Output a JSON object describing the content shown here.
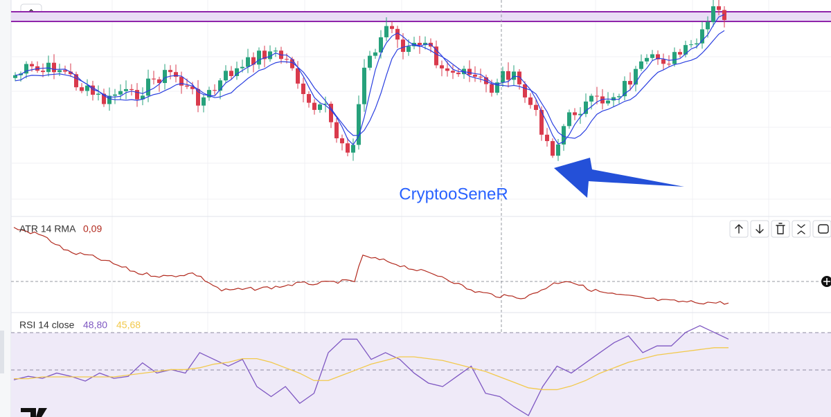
{
  "watermark": "CryptooSeneR",
  "atr": {
    "label": "ATR 14 RMA",
    "value": "0,09"
  },
  "chart_data": {
    "type": "line",
    "title": "RSI 14 close",
    "ylim": [
      24,
      79
    ],
    "series": [
      {
        "label": "48,80",
        "color": "#7e57c2",
        "values": [
          44.4,
          46.3,
          45.2,
          48.1,
          46.3,
          43.7,
          48.1,
          45.2,
          46.3,
          53.7,
          48.1,
          50,
          48.1,
          59.3,
          55.6,
          51.9,
          55.6,
          40.7,
          35.2,
          40.7,
          31.5,
          37,
          59.3,
          66.7,
          66.7,
          55.6,
          59.3,
          55.6,
          48.1,
          42.6,
          40.7,
          46.3,
          51.9,
          37,
          35.2,
          29.6,
          24.8,
          40.7,
          51.9,
          48.1,
          53.7,
          59.3,
          64.8,
          68.5,
          59.3,
          63,
          63,
          70.4,
          74.1,
          70.4,
          66.7
        ]
      },
      {
        "label": "45,68",
        "color": "#f2c94c",
        "values": [
          45,
          45,
          46,
          46,
          46,
          46,
          46,
          46,
          47,
          48,
          49,
          50,
          50,
          51,
          53,
          54,
          56,
          56,
          54,
          51,
          48,
          44,
          44,
          47,
          50,
          53,
          55,
          57,
          57,
          56,
          55,
          53,
          51,
          49,
          46,
          43,
          40,
          39,
          39,
          41,
          44,
          48,
          51,
          54,
          56,
          58,
          59,
          60,
          61,
          62,
          62
        ]
      }
    ]
  }
}
